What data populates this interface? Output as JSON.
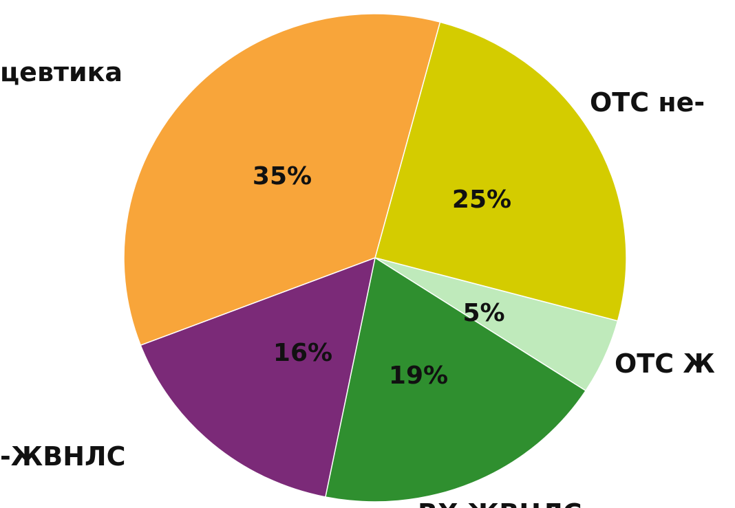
{
  "chart_data": {
    "type": "pie",
    "categories": [
      "ОТС не-",
      "ОТС Ж",
      "RX ЖВНЛС",
      "-ЖВНЛС",
      "цевтика"
    ],
    "values": [
      25,
      5,
      19,
      16,
      35
    ],
    "value_labels": [
      "25%",
      "5%",
      "19%",
      "16%",
      "35%"
    ],
    "colors": [
      "#d4cc00",
      "#bfeabb",
      "#2f8f2f",
      "#7b2a78",
      "#f8a53a"
    ]
  }
}
